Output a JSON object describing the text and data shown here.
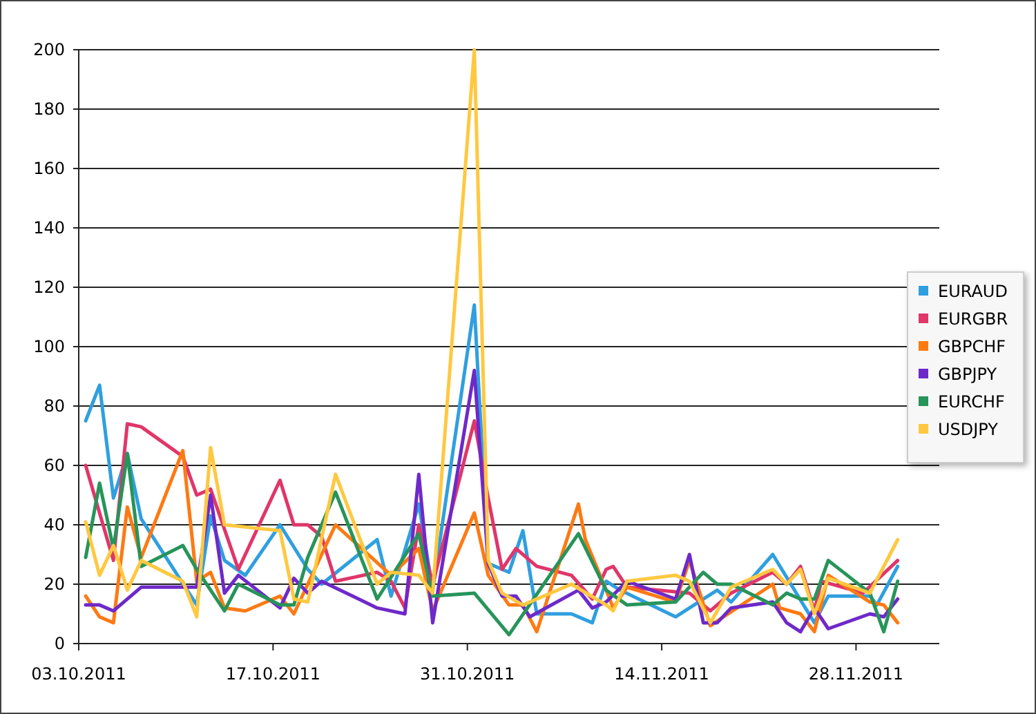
{
  "chart_data": {
    "type": "line",
    "xlim": [
      "2011-10-03",
      "2011-12-04"
    ],
    "xticks": [
      {
        "value": "2011-10-03",
        "label": "03.10.2011"
      },
      {
        "value": "2011-10-17",
        "label": "17.10.2011"
      },
      {
        "value": "2011-10-31",
        "label": "31.10.2011"
      },
      {
        "value": "2011-11-14",
        "label": "14.11.2011"
      },
      {
        "value": "2011-11-28",
        "label": "28.11.2011"
      }
    ],
    "ylim": [
      0,
      200
    ],
    "yticks": [
      0,
      20,
      40,
      60,
      80,
      100,
      120,
      140,
      160,
      180,
      200
    ],
    "grid": "y",
    "legend": "right",
    "marker": "none",
    "line_style": "solid",
    "series": [
      {
        "name": "EURAUD",
        "color": "#2f9fe0",
        "x": [
          "2011-10-03T12:00",
          "2011-10-04T12:00",
          "2011-10-05T12:00",
          "2011-10-06T12:00",
          "2011-10-07T12:00",
          "2011-10-11T12:00",
          "2011-10-12T12:00",
          "2011-10-13T12:00",
          "2011-10-15",
          "2011-10-17T12:00",
          "2011-10-19T12:00",
          "2011-10-20T12:00",
          "2011-10-24T12:00",
          "2011-10-25T12:00",
          "2011-10-27T12:00",
          "2011-10-28T12:00",
          "2011-10-31T12:00",
          "2011-11-01T12:00",
          "2011-11-03",
          "2011-11-04",
          "2011-11-05",
          "2011-11-07T12:00",
          "2011-11-09",
          "2011-11-10",
          "2011-11-11",
          "2011-11-15",
          "2011-11-18",
          "2011-11-19",
          "2011-11-22",
          "2011-11-25",
          "2011-11-26",
          "2011-11-29",
          "2011-11-29T12:00",
          "2011-12-01"
        ],
        "values": [
          75,
          87,
          49,
          64,
          42,
          13,
          43,
          28,
          23,
          40,
          25,
          20,
          35,
          16,
          47,
          18,
          114,
          27,
          24,
          38,
          10,
          10,
          7,
          21,
          18,
          9,
          18,
          14,
          30,
          7,
          16,
          16,
          13,
          26
        ]
      },
      {
        "name": "EURGBR",
        "color": "#e0366a",
        "x": [
          "2011-10-03T12:00",
          "2011-10-05T12:00",
          "2011-10-06T12:00",
          "2011-10-07T12:00",
          "2011-10-10T12:00",
          "2011-10-11T12:00",
          "2011-10-12T12:00",
          "2011-10-14T12:00",
          "2011-10-17T12:00",
          "2011-10-18T12:00",
          "2011-10-19T12:00",
          "2011-10-20T12:00",
          "2011-10-21T12:00",
          "2011-10-24T12:00",
          "2011-10-25T12:00",
          "2011-10-26T12:00",
          "2011-10-27T12:00",
          "2011-10-28T12:00",
          "2011-10-31T12:00",
          "2011-11-01T12:00",
          "2011-11-02T12:00",
          "2011-11-03T12:00",
          "2011-11-05",
          "2011-11-07T12:00",
          "2011-11-09",
          "2011-11-10",
          "2011-11-10T12:00",
          "2011-11-11T12:00",
          "2011-11-16",
          "2011-11-17T12:00",
          "2011-11-19",
          "2011-11-22",
          "2011-11-23",
          "2011-11-24",
          "2011-11-25",
          "2011-11-25T12:00",
          "2011-11-28T12:00",
          "2011-12-01"
        ],
        "values": [
          60,
          28,
          74,
          73,
          63,
          50,
          52,
          25,
          55,
          40,
          40,
          36,
          21,
          24,
          21,
          12,
          40,
          20,
          75,
          49,
          25,
          32,
          26,
          23,
          15,
          25,
          26,
          19,
          17,
          11,
          17,
          24,
          20,
          26,
          11,
          21,
          17,
          28
        ]
      },
      {
        "name": "GBPCHF",
        "color": "#fd7a13",
        "x": [
          "2011-10-03T12:00",
          "2011-10-04T12:00",
          "2011-10-05T12:00",
          "2011-10-06T12:00",
          "2011-10-07T12:00",
          "2011-10-10T12:00",
          "2011-10-11T12:00",
          "2011-10-12T12:00",
          "2011-10-13T12:00",
          "2011-10-15",
          "2011-10-17T12:00",
          "2011-10-18T12:00",
          "2011-10-21T12:00",
          "2011-10-25T12:00",
          "2011-10-27T12:00",
          "2011-10-28T12:00",
          "2011-10-31T12:00",
          "2011-11-01T12:00",
          "2011-11-03",
          "2011-11-04",
          "2011-11-05",
          "2011-11-08",
          "2011-11-08T12:00",
          "2011-11-10",
          "2011-11-10T12:00",
          "2011-11-11T12:00",
          "2011-11-15",
          "2011-11-16",
          "2011-11-17T12:00",
          "2011-11-22",
          "2011-11-22T12:00",
          "2011-11-24",
          "2011-11-25",
          "2011-11-26",
          "2011-11-29",
          "2011-11-30",
          "2011-12-01"
        ],
        "values": [
          16,
          9,
          7,
          46,
          29,
          65,
          21,
          24,
          12,
          11,
          16,
          10,
          40,
          23,
          32,
          11,
          44,
          23,
          13,
          13,
          4,
          47,
          35,
          18,
          12,
          19,
          14,
          28,
          6,
          20,
          12,
          10,
          4,
          23,
          14,
          13,
          7
        ]
      },
      {
        "name": "GBPJPY",
        "color": "#6e29c9",
        "x": [
          "2011-10-03T12:00",
          "2011-10-04T12:00",
          "2011-10-05T12:00",
          "2011-10-07T12:00",
          "2011-10-11T12:00",
          "2011-10-12T12:00",
          "2011-10-13T12:00",
          "2011-10-14T12:00",
          "2011-10-17T12:00",
          "2011-10-18T12:00",
          "2011-10-19T12:00",
          "2011-10-20T12:00",
          "2011-10-24T12:00",
          "2011-10-26T12:00",
          "2011-10-27T12:00",
          "2011-10-28T12:00",
          "2011-10-31T12:00",
          "2011-11-01T12:00",
          "2011-11-02T12:00",
          "2011-11-03T12:00",
          "2011-11-04T12:00",
          "2011-11-08",
          "2011-11-09",
          "2011-11-10",
          "2011-11-11T12:00",
          "2011-11-15",
          "2011-11-16",
          "2011-11-17",
          "2011-11-18",
          "2011-11-19",
          "2011-11-22",
          "2011-11-23",
          "2011-11-24",
          "2011-11-25",
          "2011-11-26",
          "2011-11-29",
          "2011-11-30",
          "2011-12-01"
        ],
        "values": [
          13,
          13,
          11,
          19,
          19,
          50,
          17,
          23,
          12,
          22,
          17,
          21,
          12,
          10,
          57,
          7,
          92,
          27,
          16,
          16,
          9,
          18,
          12,
          14,
          21,
          15,
          30,
          7,
          7,
          12,
          14,
          7,
          4,
          12,
          5,
          10,
          9,
          15
        ]
      },
      {
        "name": "EURCHF",
        "color": "#27945a",
        "x": [
          "2011-10-03T12:00",
          "2011-10-04T12:00",
          "2011-10-05T12:00",
          "2011-10-06T12:00",
          "2011-10-07T12:00",
          "2011-10-10T12:00",
          "2011-10-11T12:00",
          "2011-10-13T12:00",
          "2011-10-14T12:00",
          "2011-10-17T12:00",
          "2011-10-18T12:00",
          "2011-10-19T12:00",
          "2011-10-21T12:00",
          "2011-10-24T12:00",
          "2011-10-27T12:00",
          "2011-10-28T12:00",
          "2011-10-31T12:00",
          "2011-11-03",
          "2011-11-08",
          "2011-11-10",
          "2011-11-11T12:00",
          "2011-11-15",
          "2011-11-17",
          "2011-11-18",
          "2011-11-19",
          "2011-11-22",
          "2011-11-23",
          "2011-11-24",
          "2011-11-25",
          "2011-11-26",
          "2011-11-29",
          "2011-11-30",
          "2011-12-01"
        ],
        "values": [
          29,
          54,
          32,
          64,
          26,
          33,
          25,
          11,
          20,
          13,
          13,
          29,
          51,
          15,
          37,
          16,
          17,
          3,
          37,
          18,
          13,
          14,
          24,
          20,
          20,
          13,
          17,
          15,
          15,
          28,
          17,
          4,
          21
        ]
      },
      {
        "name": "USDJPY",
        "color": "#ffc840",
        "x": [
          "2011-10-03T12:00",
          "2011-10-04T12:00",
          "2011-10-05T12:00",
          "2011-10-06T12:00",
          "2011-10-07T12:00",
          "2011-10-10T12:00",
          "2011-10-11T12:00",
          "2011-10-12T12:00",
          "2011-10-13T12:00",
          "2011-10-17T12:00",
          "2011-10-18T12:00",
          "2011-10-19T12:00",
          "2011-10-21T12:00",
          "2011-10-24T12:00",
          "2011-10-25T12:00",
          "2011-10-27T12:00",
          "2011-10-28T12:00",
          "2011-10-31T12:00",
          "2011-11-01T12:00",
          "2011-11-02T12:00",
          "2011-11-04",
          "2011-11-07T12:00",
          "2011-11-10",
          "2011-11-10T12:00",
          "2011-11-11T12:00",
          "2011-11-15",
          "2011-11-16",
          "2011-11-17T12:00",
          "2011-11-19",
          "2011-11-22",
          "2011-11-23",
          "2011-11-24",
          "2011-11-25",
          "2011-11-26",
          "2011-11-29",
          "2011-12-01"
        ],
        "values": [
          41,
          23,
          33,
          18,
          28,
          21,
          9,
          66,
          40,
          38,
          15,
          14,
          57,
          20,
          24,
          23,
          17,
          200,
          28,
          17,
          13,
          20,
          13,
          11,
          21,
          23,
          21,
          7,
          19,
          25,
          20,
          25,
          10,
          22,
          17,
          35
        ]
      }
    ]
  }
}
